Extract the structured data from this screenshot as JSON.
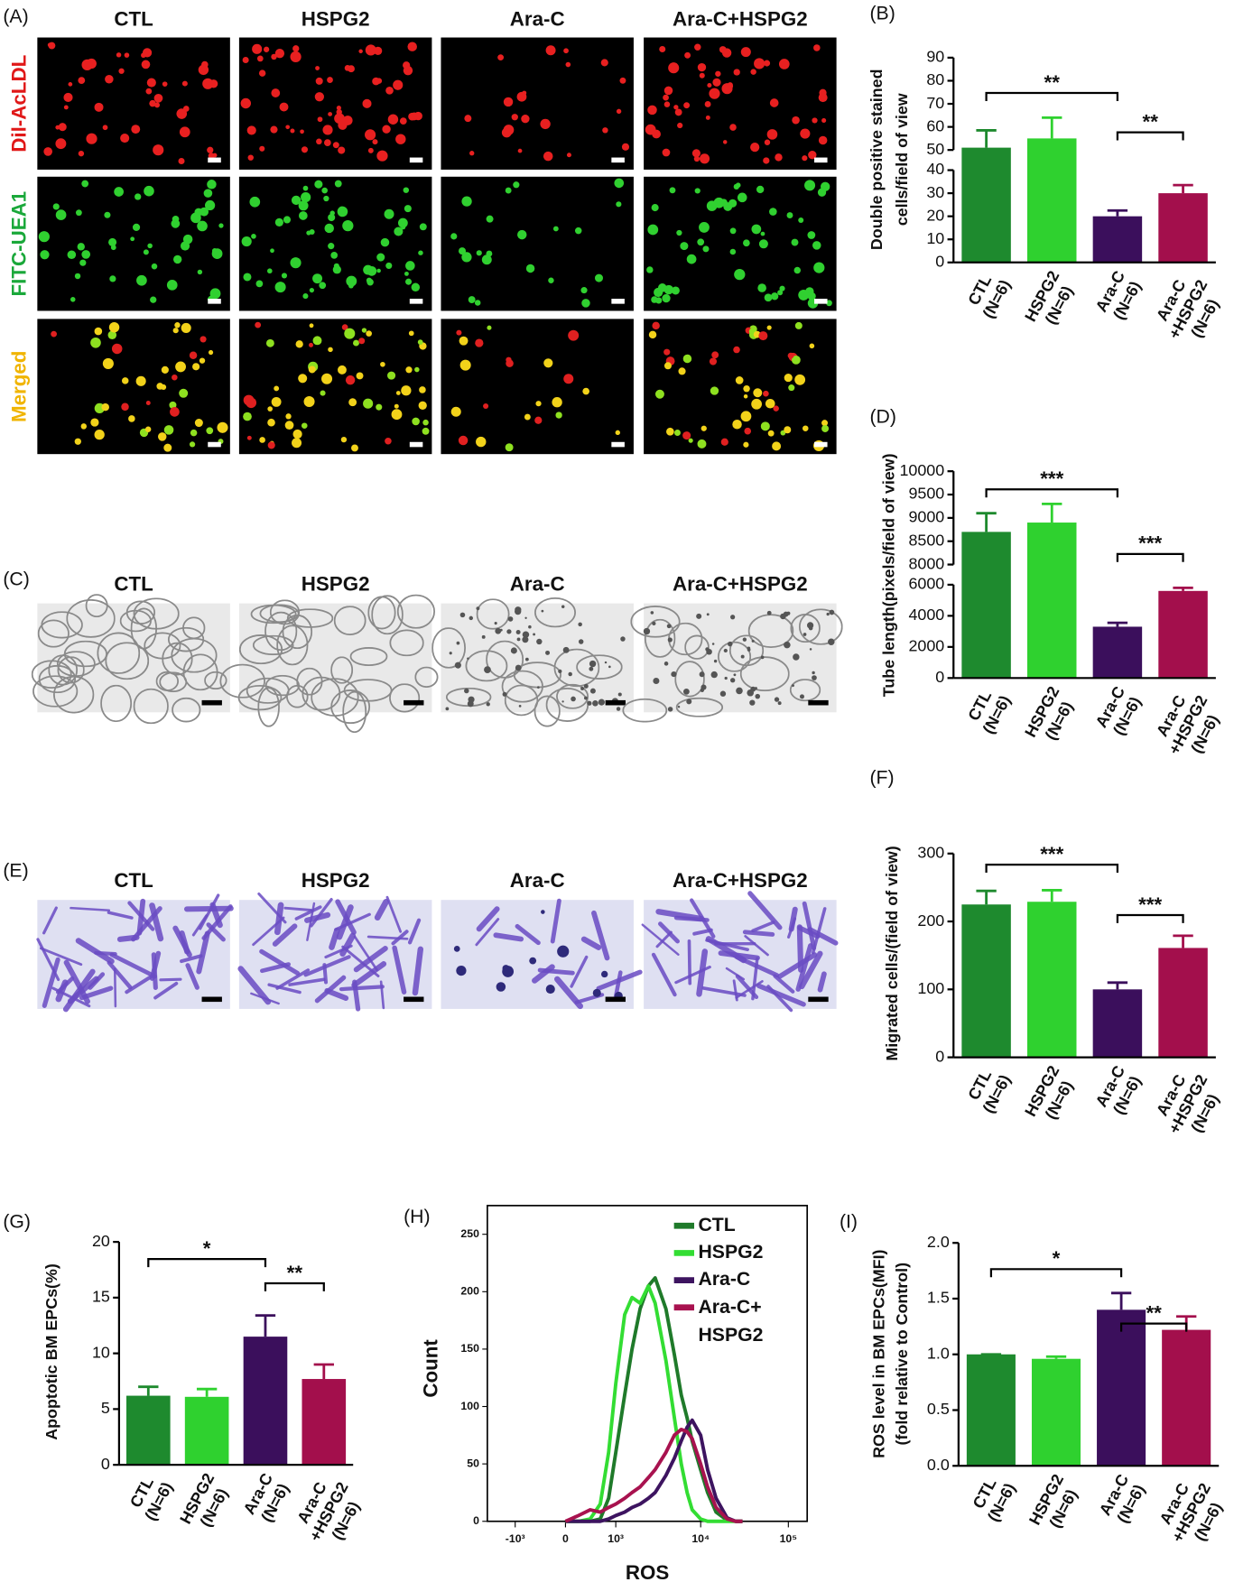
{
  "figure": {
    "A": {
      "label": "(A)",
      "columns": [
        "CTL",
        "HSPG2",
        "Ara-C",
        "Ara-C+HSPG2"
      ],
      "rows": [
        "Dil-AcLDL",
        "FITC-UEA1",
        "Merged"
      ],
      "row_colors": [
        "#e01818",
        "#1aa83a",
        "#f0b400"
      ]
    },
    "C": {
      "label": "(C)",
      "columns": [
        "CTL",
        "HSPG2",
        "Ara-C",
        "Ara-C+HSPG2"
      ]
    },
    "E": {
      "label": "(E)",
      "columns": [
        "CTL",
        "HSPG2",
        "Ara-C",
        "Ara-C+HSPG2"
      ]
    }
  },
  "chart_data": [
    {
      "label": "(B)",
      "type": "bar",
      "categories": [
        [
          "CTL",
          "(N=6)"
        ],
        [
          "HSPG2",
          "(N=6)"
        ],
        [
          "Ara-C",
          "(N=6)"
        ],
        [
          "Ara-C",
          "+HSPG2",
          "(N=6)"
        ]
      ],
      "values": [
        51,
        55,
        20,
        30
      ],
      "errors": [
        7.5,
        9,
        2.5,
        3.5
      ],
      "colors": [
        "#1e8a2e",
        "#2fd12f",
        "#3b0f5c",
        "#a30f4c"
      ],
      "ylim": [
        0,
        90
      ],
      "axis_break": [
        40,
        50
      ],
      "yticks": [
        0,
        10,
        20,
        30,
        40,
        50,
        60,
        70,
        80,
        90
      ],
      "ylabel": [
        "Double positive stained",
        "cells/field of view"
      ],
      "annotations": [
        "**",
        "**"
      ]
    },
    {
      "label": "(D)",
      "type": "bar",
      "categories": [
        [
          "CTL",
          "(N=6)"
        ],
        [
          "HSPG2",
          "(N=6)"
        ],
        [
          "Ara-C",
          "(N=6)"
        ],
        [
          "Ara-C",
          "+HSPG2",
          "(N=6)"
        ]
      ],
      "values": [
        8700,
        8900,
        3300,
        5600
      ],
      "errors": [
        400,
        400,
        250,
        200
      ],
      "colors": [
        "#1e8a2e",
        "#2fd12f",
        "#3b0f5c",
        "#a30f4c"
      ],
      "ylim": [
        0,
        10000
      ],
      "axis_break": [
        6000,
        8000
      ],
      "yticks": [
        0,
        2000,
        4000,
        6000,
        8000,
        8500,
        9000,
        9500,
        10000
      ],
      "ylabel": [
        "Tube length(pixels/field of view)"
      ],
      "annotations": [
        "***",
        "***"
      ]
    },
    {
      "label": "(F)",
      "type": "bar",
      "categories": [
        [
          "CTL",
          "(N=6)"
        ],
        [
          "HSPG2",
          "(N=6)"
        ],
        [
          "Ara-C",
          "(N=6)"
        ],
        [
          "Ara-C",
          "+HSPG2",
          "(N=6)"
        ]
      ],
      "values": [
        225,
        229,
        100,
        161
      ],
      "errors": [
        20,
        17,
        10,
        18
      ],
      "colors": [
        "#1e8a2e",
        "#2fd12f",
        "#3b0f5c",
        "#a30f4c"
      ],
      "ylim": [
        0,
        300
      ],
      "yticks": [
        0,
        100,
        200,
        300
      ],
      "ylabel": [
        "Migrated cells/(field of view)"
      ],
      "annotations": [
        "***",
        "***"
      ]
    },
    {
      "label": "(G)",
      "type": "bar",
      "categories": [
        [
          "CTL",
          "(N=6)"
        ],
        [
          "HSPG2",
          "(N=6)"
        ],
        [
          "Ara-C",
          "(N=6)"
        ],
        [
          "Ara-C",
          "+HSPG2",
          "(N=6)"
        ]
      ],
      "values": [
        6.2,
        6.1,
        11.5,
        7.7
      ],
      "errors": [
        0.8,
        0.7,
        1.9,
        1.3
      ],
      "colors": [
        "#1e8a2e",
        "#2fd12f",
        "#3b0f5c",
        "#a30f4c"
      ],
      "ylim": [
        0,
        20
      ],
      "yticks": [
        0,
        5,
        10,
        15,
        20
      ],
      "ylabel": [
        "Apoptotic BM EPCs(%)"
      ],
      "annotations": [
        "*",
        "**"
      ]
    },
    {
      "label": "(H)",
      "type": "line",
      "x": [
        0,
        200,
        400,
        600,
        800,
        1000,
        1300,
        1600,
        2000,
        2500,
        3000,
        4000,
        5000,
        6000,
        7000,
        8000,
        10000,
        12000,
        15000,
        20000,
        25000,
        30000
      ],
      "series": [
        {
          "name": "CTL",
          "color": "#1f7a2a",
          "values": [
            0,
            0,
            0,
            2,
            20,
            60,
            110,
            150,
            185,
            205,
            212,
            185,
            145,
            110,
            90,
            70,
            45,
            25,
            8,
            1,
            0,
            0
          ]
        },
        {
          "name": "HSPG2",
          "color": "#33dd33",
          "values": [
            0,
            0,
            2,
            15,
            60,
            120,
            180,
            195,
            190,
            205,
            190,
            140,
            90,
            50,
            25,
            10,
            2,
            0,
            0,
            0,
            0,
            0
          ]
        },
        {
          "name": "Ara-C",
          "color": "#3d1460",
          "values": [
            0,
            0,
            0,
            0,
            2,
            5,
            8,
            12,
            15,
            20,
            25,
            40,
            55,
            70,
            82,
            88,
            75,
            45,
            20,
            3,
            0,
            0
          ]
        },
        {
          "name": "Ara-C+ HSPG2",
          "color": "#a8124f",
          "values": [
            0,
            5,
            10,
            8,
            12,
            15,
            20,
            25,
            30,
            38,
            45,
            60,
            75,
            80,
            78,
            72,
            50,
            30,
            12,
            2,
            0,
            0
          ]
        }
      ],
      "xlim": [
        -2200,
        164000
      ],
      "xscale": "biexponential",
      "xticks": [
        {
          "value": -1000,
          "label": "-10³"
        },
        0,
        {
          "value": 1000,
          "label": "10³"
        },
        {
          "value": 10000,
          "label": "10⁴"
        },
        {
          "value": 100000,
          "label": "10⁵"
        }
      ],
      "ylim": [
        0,
        275
      ],
      "yticks": [
        0,
        50,
        100,
        150,
        200,
        250
      ],
      "xlabel": "ROS",
      "ylabel": "Count",
      "legend": "upper right"
    },
    {
      "label": "(I)",
      "type": "bar",
      "categories": [
        [
          "CTL",
          "(N=6)"
        ],
        [
          "HSPG2",
          "(N=6)"
        ],
        [
          "Ara-C",
          "(N=6)"
        ],
        [
          "Ara-C",
          "+HSPG2",
          "(N=6)"
        ]
      ],
      "values": [
        1.0,
        0.96,
        1.4,
        1.22
      ],
      "errors": [
        0,
        0.02,
        0.15,
        0.12
      ],
      "colors": [
        "#1e8a2e",
        "#2fd12f",
        "#3b0f5c",
        "#a30f4c"
      ],
      "ylim": [
        0,
        2
      ],
      "yticks": [
        {
          "value": 0,
          "label": "0.0"
        },
        {
          "value": 0.5,
          "label": "0.5"
        },
        {
          "value": 1,
          "label": "1.0"
        },
        {
          "value": 1.5,
          "label": "1.5"
        },
        {
          "value": 2,
          "label": "2.0"
        }
      ],
      "ylabel": [
        "ROS level in BM EPCs(MFI)",
        "(fold relative to Control)"
      ],
      "annotations": [
        "*",
        "**"
      ]
    }
  ]
}
